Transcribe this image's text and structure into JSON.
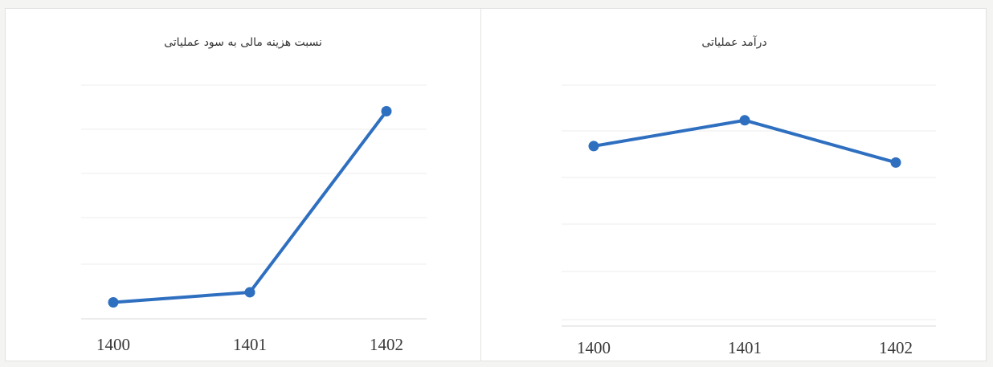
{
  "colors": {
    "line": "#2f6fc0",
    "grid": "#ececec",
    "axis": "#d9d9d9"
  },
  "chart_data": [
    {
      "type": "line",
      "title": "نسبت هزینه مالی به سود عملیاتی",
      "categories": [
        "1400",
        "1401",
        "1402"
      ],
      "series": [
        {
          "values": [
            0.05,
            0.1,
            1.0
          ]
        }
      ],
      "ylim": [
        0,
        1.05
      ],
      "grid": true,
      "y_tick_labels_shown": false
    },
    {
      "type": "line",
      "title": "درآمد عملیاتی",
      "categories": [
        "1400",
        "1401",
        "1402"
      ],
      "series": [
        {
          "values": [
            0.74,
            0.85,
            0.67
          ]
        }
      ],
      "ylim": [
        0,
        1.0
      ],
      "grid": true,
      "y_tick_labels_shown": false
    }
  ]
}
